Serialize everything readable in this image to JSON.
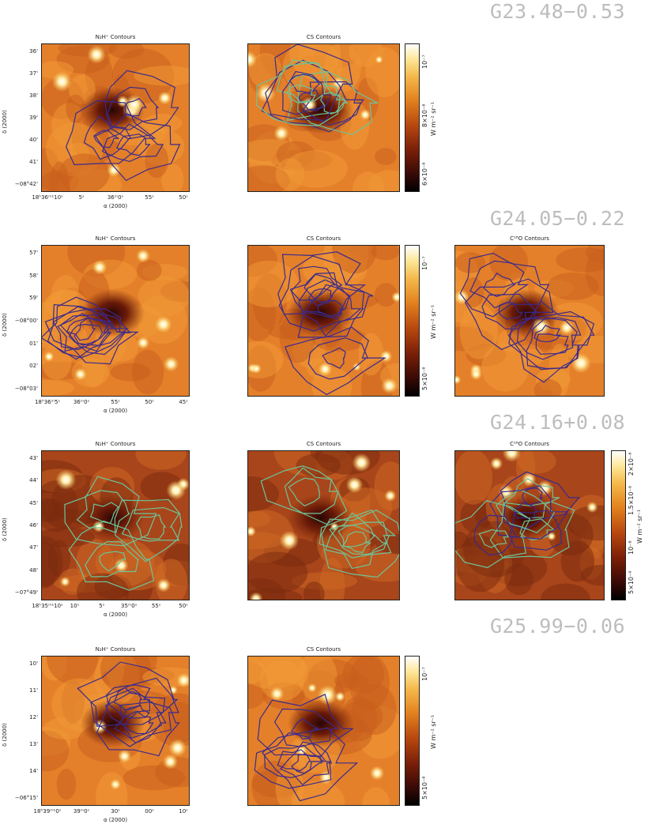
{
  "sources": [
    {
      "name": "G23.48−0.53",
      "panels": [
        {
          "title": "N₂H⁺ Contours",
          "contour": "purple"
        },
        {
          "title": "CS Contours",
          "contour": "mixed"
        }
      ],
      "y_ticks": [
        "36'",
        "37'",
        "38'",
        "39'",
        "40'",
        "41'",
        "−08°42'"
      ],
      "x_ticks": [
        "18ʰ36ᵐ¹10ˢ",
        "5ˢ",
        "36ᵐ0ˢ",
        "55ˢ",
        "50ˢ"
      ],
      "colorbar_ticks": [
        "6×10⁻⁸",
        "8×10⁻⁸",
        "10⁻⁷"
      ],
      "colorbar_unit": "W m⁻² sr⁻¹"
    },
    {
      "name": "G24.05−0.22",
      "panels": [
        {
          "title": "N₂H⁺ Contours",
          "contour": "purple"
        },
        {
          "title": "CS Contours",
          "contour": "purple"
        },
        {
          "title": "C¹⁸O Contours",
          "contour": "purple"
        }
      ],
      "y_ticks": [
        "57'",
        "58'",
        "59'",
        "−08°00'",
        "01'",
        "02'",
        "−08°03'"
      ],
      "x_ticks": [
        "18ʰ36ᵐ5ˢ",
        "36ᵐ0ˢ",
        "55ˢ",
        "50ˢ",
        "45ˢ"
      ],
      "colorbar_ticks": [
        "5×10⁻⁸",
        "10⁻⁷"
      ],
      "colorbar_unit": "W m⁻² sr⁻¹"
    },
    {
      "name": "G24.16+0.08",
      "panels": [
        {
          "title": "N₂H⁺ Contours",
          "contour": "green"
        },
        {
          "title": "CS Contours",
          "contour": "green"
        },
        {
          "title": "C¹⁸O Contours",
          "contour": "mixed"
        }
      ],
      "y_ticks": [
        "43'",
        "44'",
        "45'",
        "46'",
        "47'",
        "48'",
        "−07°49'"
      ],
      "x_ticks": [
        "18ʰ35ᵐ¹10ˢ",
        "10ˢ",
        "5ˢ",
        "35ᵐ0ˢ",
        "55ˢ",
        "50ˢ"
      ],
      "colorbar_ticks": [
        "5×10⁻⁹",
        "10⁻⁸",
        "1.5×10⁻⁸",
        "2×10⁻⁸"
      ],
      "colorbar_unit": "W m⁻² sr⁻¹"
    },
    {
      "name": "G25.99−0.06",
      "panels": [
        {
          "title": "N₂H⁺ Contours",
          "contour": "purple"
        },
        {
          "title": "CS Contours",
          "contour": "purple"
        }
      ],
      "y_ticks": [
        "10'",
        "11'",
        "12'",
        "13'",
        "14'",
        "−06°15'"
      ],
      "x_ticks": [
        "18ʰ39ᵐ¹0ˢ",
        "39ᵐ0ˢ",
        "30ˢ",
        "00ˢ",
        "10ˢ"
      ],
      "colorbar_ticks": [
        "5×10⁻⁸",
        "10⁻⁷"
      ],
      "colorbar_unit": "W m⁻² sr⁻¹"
    }
  ],
  "y_axis_label": "δ (2000)",
  "x_axis_label": "α (2000)",
  "colors": {
    "purple_contour": "#3a2a8c",
    "green_contour": "#6cc59a",
    "map_base": "#e07a22"
  }
}
